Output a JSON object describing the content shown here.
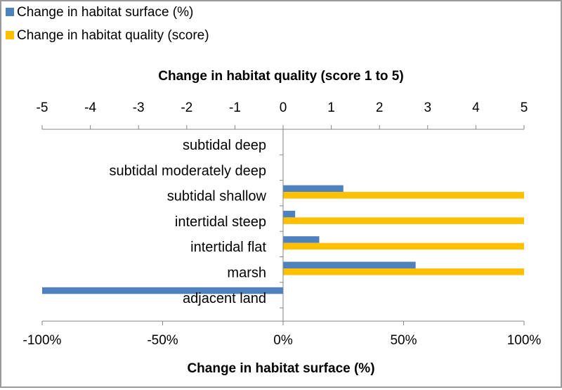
{
  "chart_data": {
    "type": "bar",
    "orientation": "horizontal",
    "categories": [
      "subtidal deep",
      "subtidal moderately deep",
      "subtidal shallow",
      "intertidal steep",
      "intertidal flat",
      "marsh",
      "adjacent land"
    ],
    "series": [
      {
        "name": "Change in habitat surface (%)",
        "axis": "bottom",
        "color": "#4f81bd",
        "values": [
          0,
          0,
          25,
          5,
          15,
          55,
          -100
        ]
      },
      {
        "name": "Change in habitat quality (score)",
        "axis": "top",
        "color": "#ffc000",
        "values": [
          0,
          0,
          5,
          5,
          5,
          5,
          0
        ]
      }
    ],
    "top_axis": {
      "label": "Change in habitat quality (score 1 to 5)",
      "range": [
        -5,
        5
      ],
      "ticks": [
        -5,
        -4,
        -3,
        -2,
        -1,
        0,
        1,
        2,
        3,
        4,
        5
      ],
      "tick_labels": [
        "-5",
        "-4",
        "-3",
        "-2",
        "-1",
        "0",
        "1",
        "2",
        "3",
        "4",
        "5"
      ]
    },
    "bottom_axis": {
      "label": "Change in habitat surface (%)",
      "range": [
        -100,
        100
      ],
      "ticks": [
        -100,
        -50,
        0,
        50,
        100
      ],
      "tick_labels": [
        "-100%",
        "-50%",
        "0%",
        "50%",
        "100%"
      ]
    },
    "legend_position": "top-left",
    "grid": false
  }
}
